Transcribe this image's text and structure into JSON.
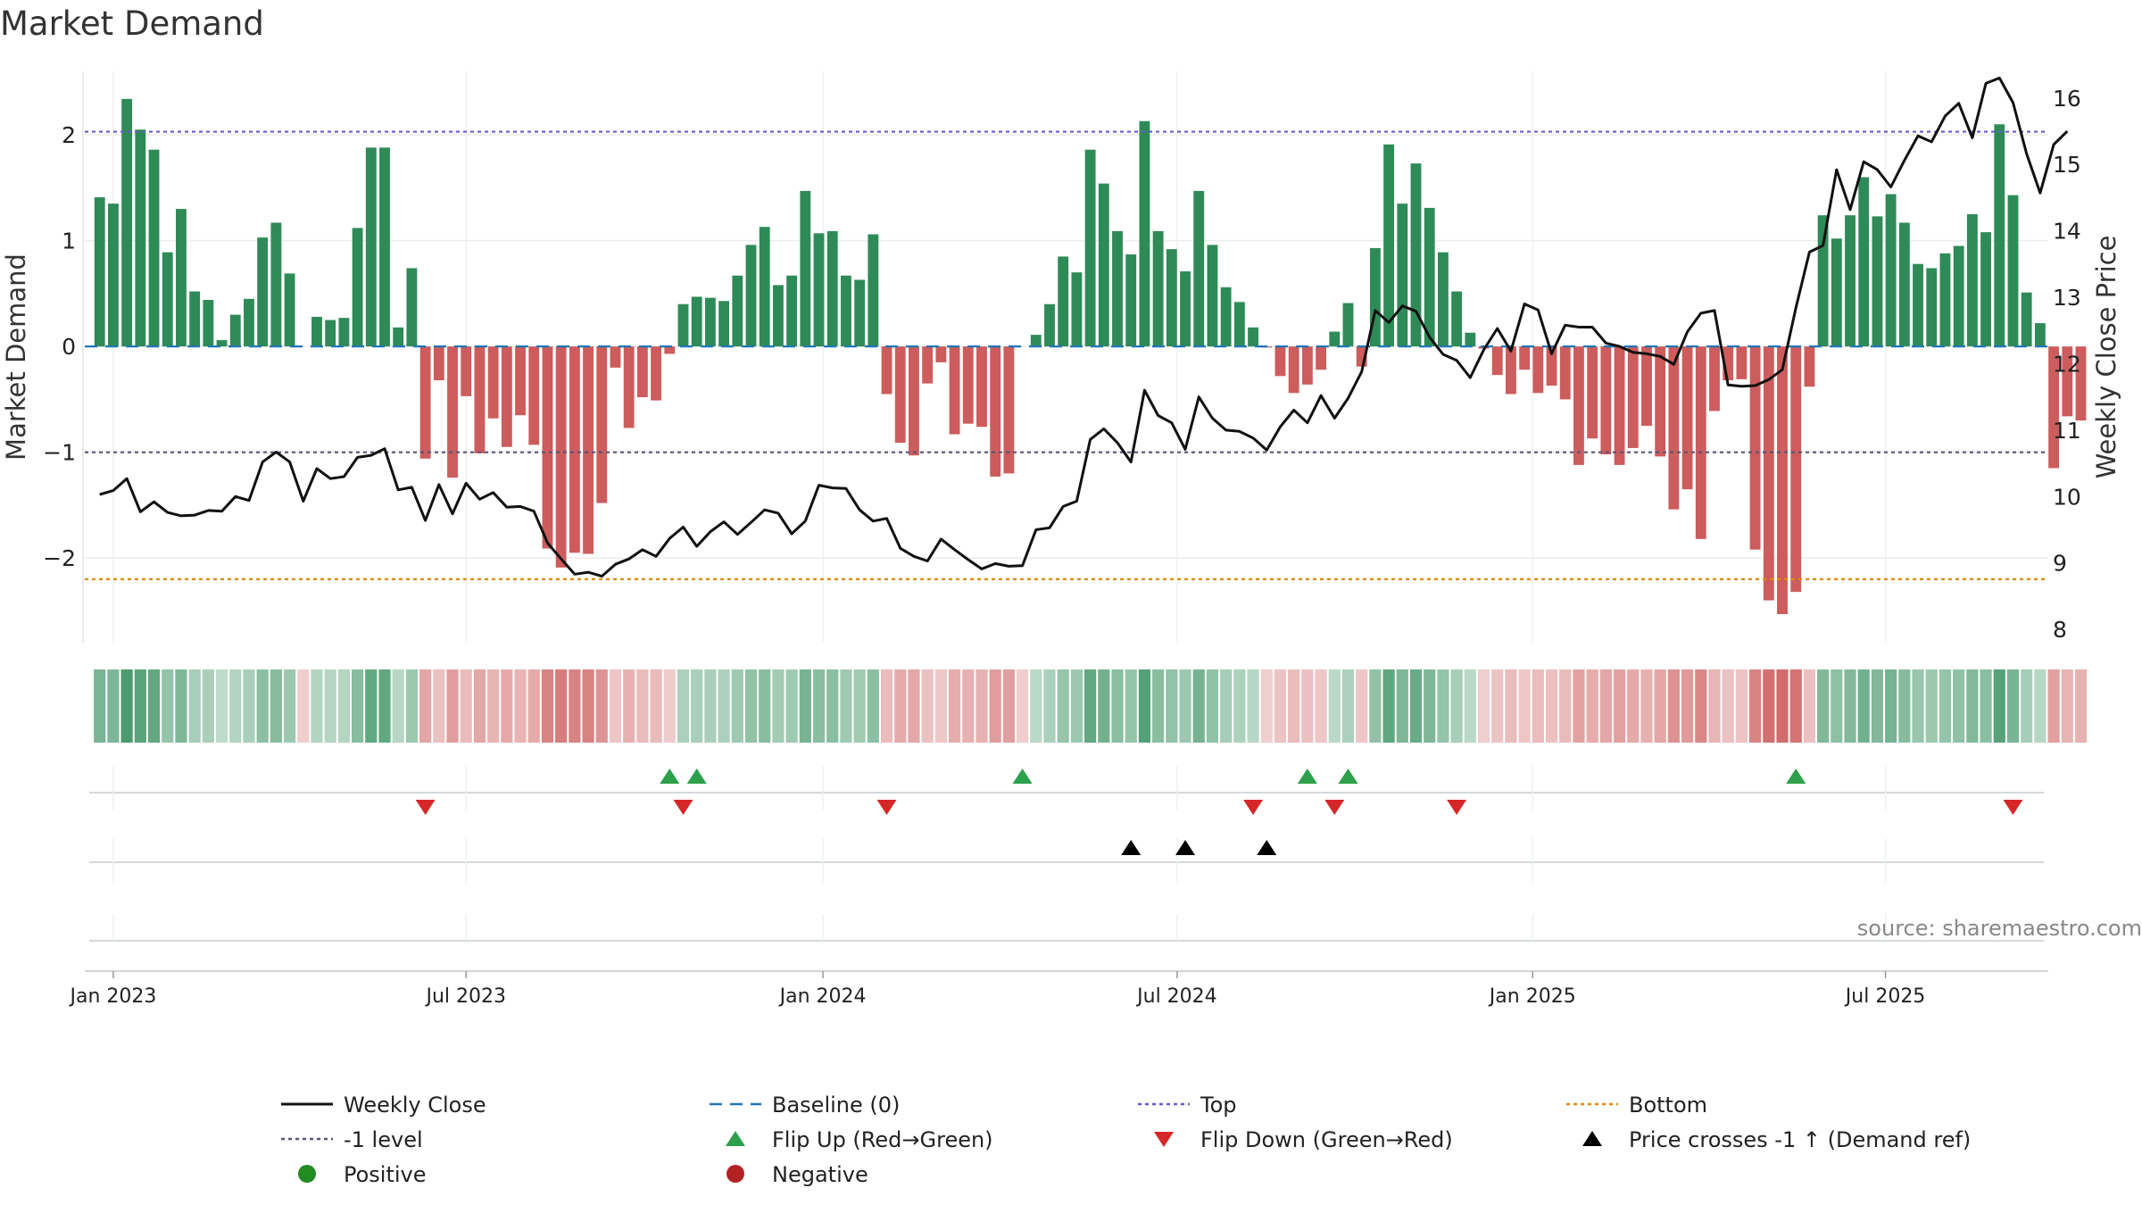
{
  "chart_data": {
    "type": "bar",
    "title": "Market Demand",
    "ylabel_left": "Market Demand",
    "ylabel_right": "Weekly Close Price",
    "source": "source: sharemaestro.com",
    "ylim_left": [
      -2.8,
      2.6
    ],
    "ylim_right": [
      7.8,
      16.4
    ],
    "yticks_left": [
      2,
      1,
      0,
      -1,
      -2
    ],
    "yticks_left_labels": [
      "2",
      "1",
      "0",
      "−1",
      "−2"
    ],
    "yticks_right": [
      16,
      15,
      14,
      13,
      12,
      11,
      10,
      9,
      8
    ],
    "yticks_right_labels": [
      "16",
      "15",
      "14",
      "13",
      "12",
      "11",
      "10",
      "9",
      "8"
    ],
    "x_range_weeks": [
      -1.1,
      143.6
    ],
    "xticks": [
      {
        "label": "Jan 2023",
        "week": 1.0
      },
      {
        "label": "Jul 2023",
        "week": 27.0
      },
      {
        "label": "Jan 2024",
        "week": 53.3
      },
      {
        "label": "Jul 2024",
        "week": 79.4
      },
      {
        "label": "Jan 2025",
        "week": 105.6
      },
      {
        "label": "Jul 2025",
        "week": 131.6
      }
    ],
    "reference_lines": {
      "top": 2.03,
      "bottom": -2.2,
      "minus_one": -1.0,
      "baseline": 0
    },
    "demand": [
      1.41,
      1.35,
      2.34,
      2.05,
      1.86,
      0.89,
      1.3,
      0.52,
      0.44,
      0.06,
      0.3,
      0.45,
      1.03,
      1.17,
      0.69,
      0,
      0.28,
      0.25,
      0.27,
      1.12,
      1.88,
      1.88,
      0.18,
      0.74,
      -1.06,
      -0.32,
      -1.24,
      -0.47,
      -1.01,
      -0.68,
      -0.95,
      -0.65,
      -0.93,
      -1.91,
      -2.09,
      -1.95,
      -1.96,
      -1.48,
      -0.2,
      -0.77,
      -0.48,
      -0.51,
      -0.07,
      0.4,
      0.47,
      0.46,
      0.43,
      0.67,
      0.96,
      1.13,
      0.58,
      0.67,
      1.47,
      1.07,
      1.09,
      0.67,
      0.63,
      1.06,
      -0.45,
      -0.91,
      -1.03,
      -0.35,
      -0.15,
      -0.83,
      -0.73,
      -0.76,
      -1.23,
      -1.2,
      0,
      0.11,
      0.4,
      0.85,
      0.7,
      1.86,
      1.54,
      1.09,
      0.87,
      2.13,
      1.09,
      0.92,
      0.71,
      1.47,
      0.96,
      0.56,
      0.42,
      0.18,
      -0.01,
      -0.28,
      -0.44,
      -0.36,
      -0.22,
      0.14,
      0.41,
      -0.19,
      0.93,
      1.91,
      1.35,
      1.73,
      1.31,
      0.89,
      0.52,
      0.13,
      -0.02,
      -0.27,
      -0.45,
      -0.22,
      -0.44,
      -0.37,
      -0.5,
      -1.12,
      -0.87,
      -1.02,
      -1.12,
      -0.96,
      -0.75,
      -1.04,
      -1.54,
      -1.35,
      -1.82,
      -0.61,
      -0.32,
      -0.31,
      -1.92,
      -2.4,
      -2.53,
      -2.32,
      -0.38,
      1.24,
      1.02,
      1.24,
      1.6,
      1.23,
      1.44,
      1.17,
      0.78,
      0.74,
      0.88,
      0.95,
      1.25,
      1.08,
      2.1,
      1.43,
      0.51,
      0.22,
      -1.15,
      -0.66,
      -0.7
    ],
    "price": [
      10.03,
      10.09,
      10.27,
      9.77,
      9.92,
      9.76,
      9.71,
      9.72,
      9.79,
      9.78,
      10.0,
      9.94,
      10.52,
      10.67,
      10.52,
      9.93,
      10.42,
      10.27,
      10.3,
      10.59,
      10.62,
      10.72,
      10.1,
      10.14,
      9.64,
      10.18,
      9.74,
      10.2,
      9.96,
      10.06,
      9.84,
      9.85,
      9.78,
      9.3,
      9.06,
      8.83,
      8.86,
      8.8,
      8.98,
      9.06,
      9.2,
      9.1,
      9.37,
      9.54,
      9.25,
      9.47,
      9.62,
      9.43,
      9.61,
      9.8,
      9.75,
      9.44,
      9.63,
      10.17,
      10.13,
      10.12,
      9.8,
      9.63,
      9.67,
      9.22,
      9.1,
      9.03,
      9.36,
      9.2,
      9.05,
      8.91,
      8.99,
      8.95,
      8.96,
      9.5,
      9.53,
      9.85,
      9.93,
      10.86,
      11.02,
      10.81,
      10.52,
      11.6,
      11.22,
      11.11,
      10.71,
      11.5,
      11.18,
      11.0,
      10.98,
      10.88,
      10.7,
      11.05,
      11.3,
      11.11,
      11.52,
      11.18,
      11.48,
      11.88,
      12.8,
      12.62,
      12.87,
      12.79,
      12.4,
      12.14,
      12.05,
      11.79,
      12.21,
      12.53,
      12.19,
      12.9,
      12.81,
      12.15,
      12.58,
      12.55,
      12.55,
      12.31,
      12.26,
      12.17,
      12.15,
      12.11,
      11.99,
      12.48,
      12.76,
      12.8,
      11.68,
      11.66,
      11.67,
      11.76,
      11.91,
      12.84,
      13.68,
      13.78,
      14.92,
      14.32,
      15.04,
      14.92,
      14.66,
      15.06,
      15.43,
      15.34,
      15.73,
      15.92,
      15.4,
      16.22,
      16.3,
      15.93,
      15.16,
      14.57,
      15.3,
      15.5
    ],
    "flip_up_weeks": [
      42,
      44,
      68,
      89,
      92,
      125
    ],
    "flip_down_weeks": [
      24,
      43,
      58,
      85,
      91,
      100,
      141
    ],
    "price_cross_weeks": [
      76,
      80,
      86
    ],
    "legend": [
      {
        "label": "Weekly Close",
        "kind": "line",
        "color": "#111111"
      },
      {
        "label": "Baseline (0)",
        "kind": "dash",
        "color": "#1f77b4"
      },
      {
        "label": "Top",
        "kind": "dot",
        "color": "#6a5acd"
      },
      {
        "label": "Bottom",
        "kind": "dot",
        "color": "#e08a00"
      },
      {
        "label": "-1 level",
        "kind": "dot",
        "color": "#555577"
      },
      {
        "label": "Flip Up (Red→Green)",
        "kind": "tri-up",
        "color": "#2ca04a"
      },
      {
        "label": "Flip Down (Green→Red)",
        "kind": "tri-down",
        "color": "#d62728"
      },
      {
        "label": "Price crosses -1 ↑ (Demand ref)",
        "kind": "tri-up",
        "color": "#000000"
      },
      {
        "label": "Positive",
        "kind": "circle",
        "color": "#228b22"
      },
      {
        "label": "Negative",
        "kind": "circle",
        "color": "#b22222"
      }
    ]
  },
  "colors": {
    "positive_bar": "#2e8b57",
    "negative_bar": "#cd5c5c",
    "price_line": "#111111",
    "baseline": "#1f77b4",
    "top": "#6a5acd",
    "bottom": "#e08a00",
    "minus_one": "#555577",
    "flip_up": "#2ca04a",
    "flip_down": "#d62728",
    "cross": "#000000"
  }
}
